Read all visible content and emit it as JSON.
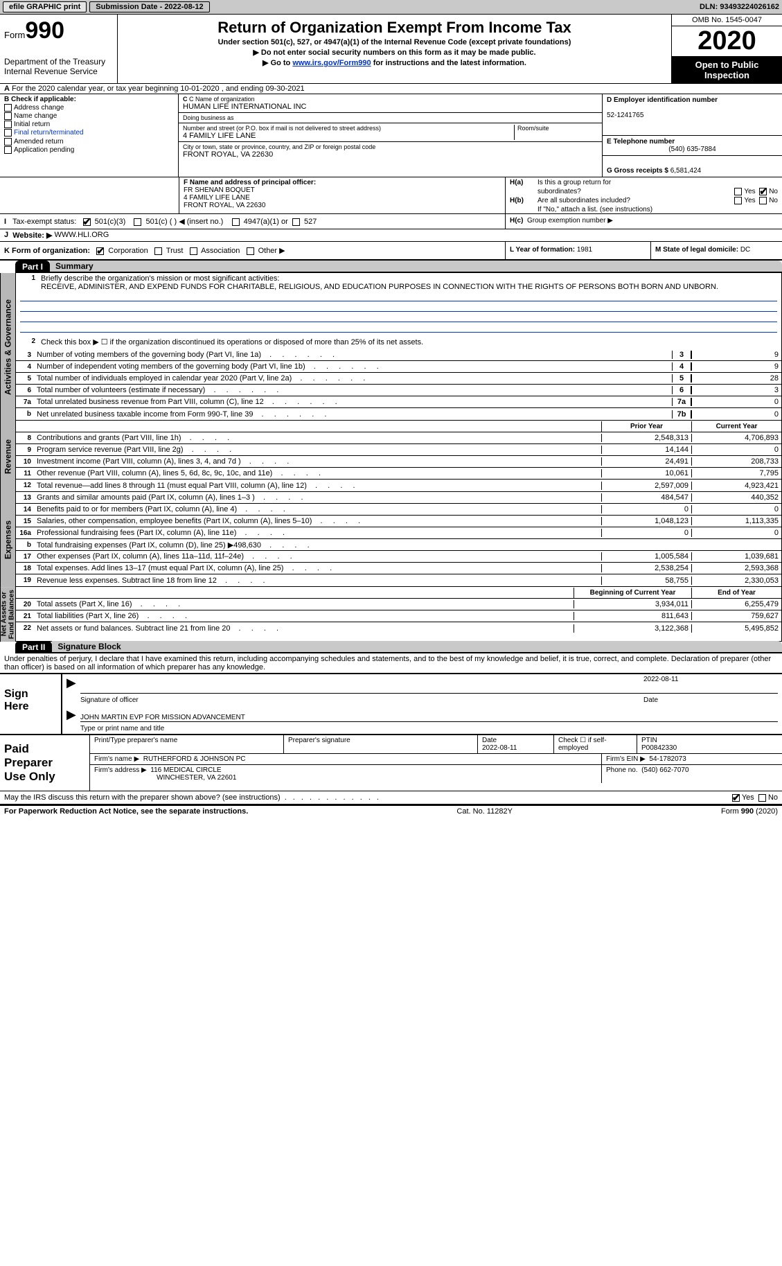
{
  "toolbar": {
    "efile_label": "efile GRAPHIC print",
    "submission_label": "Submission Date - 2022-08-12",
    "dln_label": "DLN: 93493224026162"
  },
  "header": {
    "form_label": "Form",
    "form_number": "990",
    "department": "Department of the Treasury\nInternal Revenue Service",
    "title": "Return of Organization Exempt From Income Tax",
    "subtitle": "Under section 501(c), 527, or 4947(a)(1) of the Internal Revenue Code (except private foundations)",
    "note1": "Do not enter social security numbers on this form as it may be made public.",
    "note2_pre": "Go to ",
    "note2_link": "www.irs.gov/Form990",
    "note2_post": " for instructions and the latest information.",
    "omb": "OMB No. 1545-0047",
    "year": "2020",
    "open_public": "Open to Public\nInspection"
  },
  "line_a": "For the 2020 calendar year, or tax year beginning 10-01-2020    , and ending 09-30-2021",
  "section_b": {
    "label": "B Check if applicable:",
    "items": [
      "Address change",
      "Name change",
      "Initial return",
      "Final return/terminated",
      "Amended return",
      "Application pending"
    ]
  },
  "section_c": {
    "label": "C Name of organization",
    "name": "HUMAN LIFE INTERNATIONAL INC",
    "dba_label": "Doing business as",
    "dba": "",
    "street_label": "Number and street (or P.O. box if mail is not delivered to street address)",
    "street": "4 FAMILY LIFE LANE",
    "room_label": "Room/suite",
    "room": "",
    "city_label": "City or town, state or province, country, and ZIP or foreign postal code",
    "city": "FRONT ROYAL, VA  22630"
  },
  "section_d": {
    "label": "D Employer identification number",
    "value": "52-1241765"
  },
  "section_e": {
    "label": "E Telephone number",
    "value": "(540) 635-7884"
  },
  "section_g": {
    "label": "G Gross receipts $",
    "value": "6,581,424"
  },
  "section_f": {
    "label": "F Name and address of principal officer:",
    "name": "FR SHENAN BOQUET",
    "addr1": "4 FAMILY LIFE LANE",
    "addr2": "FRONT ROYAL, VA  22630"
  },
  "section_h": {
    "ha_label": "Is this a group return for",
    "ha_label2": "subordinates?",
    "hb_label": "Are all subordinates included?",
    "hb_no_note": "If \"No,\" attach a list. (see instructions)",
    "hc_label": "Group exemption number ▶"
  },
  "section_i": {
    "label": "Tax-exempt status:",
    "opts": [
      "501(c)(3)",
      "501(c) (  ) ◀ (insert no.)",
      "4947(a)(1) or",
      "527"
    ]
  },
  "section_j": {
    "label": "Website: ▶",
    "value": "WWW.HLI.ORG"
  },
  "section_k": {
    "label": "K Form of organization:",
    "opts": [
      "Corporation",
      "Trust",
      "Association",
      "Other ▶"
    ]
  },
  "section_l": {
    "label": "L Year of formation:",
    "value": "1981"
  },
  "section_m": {
    "label": "M State of legal domicile:",
    "value": "DC"
  },
  "part1": {
    "label": "Part I",
    "title": "Summary",
    "q1_label": "Briefly describe the organization's mission or most significant activities:",
    "q1_text": "RECEIVE, ADMINISTER, AND EXPEND FUNDS FOR CHARITABLE, RELIGIOUS, AND EDUCATION PURPOSES IN CONNECTION WITH THE RIGHTS OF PERSONS BOTH BORN AND UNBORN.",
    "q2_label": "Check this box ▶ ☐  if the organization discontinued its operations or disposed of more than 25% of its net assets.",
    "lines_gov": [
      {
        "n": "3",
        "t": "Number of voting members of the governing body (Part VI, line 1a)",
        "cell": "3",
        "v": "9"
      },
      {
        "n": "4",
        "t": "Number of independent voting members of the governing body (Part VI, line 1b)",
        "cell": "4",
        "v": "9"
      },
      {
        "n": "5",
        "t": "Total number of individuals employed in calendar year 2020 (Part V, line 2a)",
        "cell": "5",
        "v": "28"
      },
      {
        "n": "6",
        "t": "Total number of volunteers (estimate if necessary)",
        "cell": "6",
        "v": "3"
      },
      {
        "n": "7a",
        "t": "Total unrelated business revenue from Part VIII, column (C), line 12",
        "cell": "7a",
        "v": "0"
      },
      {
        "n": "b",
        "t": "Net unrelated business taxable income from Form 990-T, line 39",
        "cell": "7b",
        "v": "0"
      }
    ],
    "col_hdr_prior": "Prior Year",
    "col_hdr_current": "Current Year",
    "revenue_lines": [
      {
        "n": "8",
        "t": "Contributions and grants (Part VIII, line 1h)",
        "py": "2,548,313",
        "cy": "4,706,893"
      },
      {
        "n": "9",
        "t": "Program service revenue (Part VIII, line 2g)",
        "py": "14,144",
        "cy": "0"
      },
      {
        "n": "10",
        "t": "Investment income (Part VIII, column (A), lines 3, 4, and 7d )",
        "py": "24,491",
        "cy": "208,733"
      },
      {
        "n": "11",
        "t": "Other revenue (Part VIII, column (A), lines 5, 6d, 8c, 9c, 10c, and 11e)",
        "py": "10,061",
        "cy": "7,795"
      },
      {
        "n": "12",
        "t": "Total revenue—add lines 8 through 11 (must equal Part VIII, column (A), line 12)",
        "py": "2,597,009",
        "cy": "4,923,421"
      }
    ],
    "expense_lines": [
      {
        "n": "13",
        "t": "Grants and similar amounts paid (Part IX, column (A), lines 1–3 )",
        "py": "484,547",
        "cy": "440,352"
      },
      {
        "n": "14",
        "t": "Benefits paid to or for members (Part IX, column (A), line 4)",
        "py": "0",
        "cy": "0"
      },
      {
        "n": "15",
        "t": "Salaries, other compensation, employee benefits (Part IX, column (A), lines 5–10)",
        "py": "1,048,123",
        "cy": "1,113,335"
      },
      {
        "n": "16a",
        "t": "Professional fundraising fees (Part IX, column (A), line 11e)",
        "py": "0",
        "cy": "0"
      },
      {
        "n": "b",
        "t": "Total fundraising expenses (Part IX, column (D), line 25) ▶498,630",
        "py": "",
        "cy": "",
        "gray": true
      },
      {
        "n": "17",
        "t": "Other expenses (Part IX, column (A), lines 11a–11d, 11f–24e)",
        "py": "1,005,584",
        "cy": "1,039,681"
      },
      {
        "n": "18",
        "t": "Total expenses. Add lines 13–17 (must equal Part IX, column (A), line 25)",
        "py": "2,538,254",
        "cy": "2,593,368"
      },
      {
        "n": "19",
        "t": "Revenue less expenses. Subtract line 18 from line 12",
        "py": "58,755",
        "cy": "2,330,053"
      }
    ],
    "col_hdr_boy": "Beginning of Current Year",
    "col_hdr_eoy": "End of Year",
    "netasset_lines": [
      {
        "n": "20",
        "t": "Total assets (Part X, line 16)",
        "py": "3,934,011",
        "cy": "6,255,479"
      },
      {
        "n": "21",
        "t": "Total liabilities (Part X, line 26)",
        "py": "811,643",
        "cy": "759,627"
      },
      {
        "n": "22",
        "t": "Net assets or fund balances. Subtract line 21 from line 20",
        "py": "3,122,368",
        "cy": "5,495,852"
      }
    ],
    "side_gov": "Activities & Governance",
    "side_rev": "Revenue",
    "side_exp": "Expenses",
    "side_net": "Net Assets or\nFund Balances"
  },
  "part2": {
    "label": "Part II",
    "title": "Signature Block",
    "declaration": "Under penalties of perjury, I declare that I have examined this return, including accompanying schedules and statements, and to the best of my knowledge and belief, it is true, correct, and complete. Declaration of preparer (other than officer) is based on all information of which preparer has any knowledge.",
    "sign_here": "Sign\nHere",
    "sig_officer_label": "Signature of officer",
    "sig_date_label": "Date",
    "sig_date": "2022-08-11",
    "officer_name": "JOHN MARTIN  EVP FOR MISSION ADVANCEMENT",
    "officer_type_label": "Type or print name and title",
    "paid_prep": "Paid\nPreparer\nUse Only",
    "prep_name_label": "Print/Type preparer's name",
    "prep_name": "",
    "prep_sig_label": "Preparer's signature",
    "prep_date_label": "Date",
    "prep_date": "2022-08-11",
    "prep_self_label": "Check ☐ if self-employed",
    "ptin_label": "PTIN",
    "ptin": "P00842330",
    "firm_name_label": "Firm's name    ▶",
    "firm_name": "RUTHERFORD & JOHNSON PC",
    "firm_ein_label": "Firm's EIN ▶",
    "firm_ein": "54-1782073",
    "firm_addr_label": "Firm's address ▶",
    "firm_addr1": "116 MEDICAL CIRCLE",
    "firm_addr2": "WINCHESTER, VA  22601",
    "firm_phone_label": "Phone no.",
    "firm_phone": "(540) 662-7070",
    "discuss_label": "May the IRS discuss this return with the preparer shown above? (see instructions)"
  },
  "footer": {
    "left": "For Paperwork Reduction Act Notice, see the separate instructions.",
    "mid": "Cat. No. 11282Y",
    "right": "Form 990 (2020)"
  },
  "labels": {
    "yes": "Yes",
    "no": "No",
    "ha": "H(a)",
    "hb": "H(b)",
    "hc": "H(c)",
    "i": "I",
    "j": "J"
  }
}
